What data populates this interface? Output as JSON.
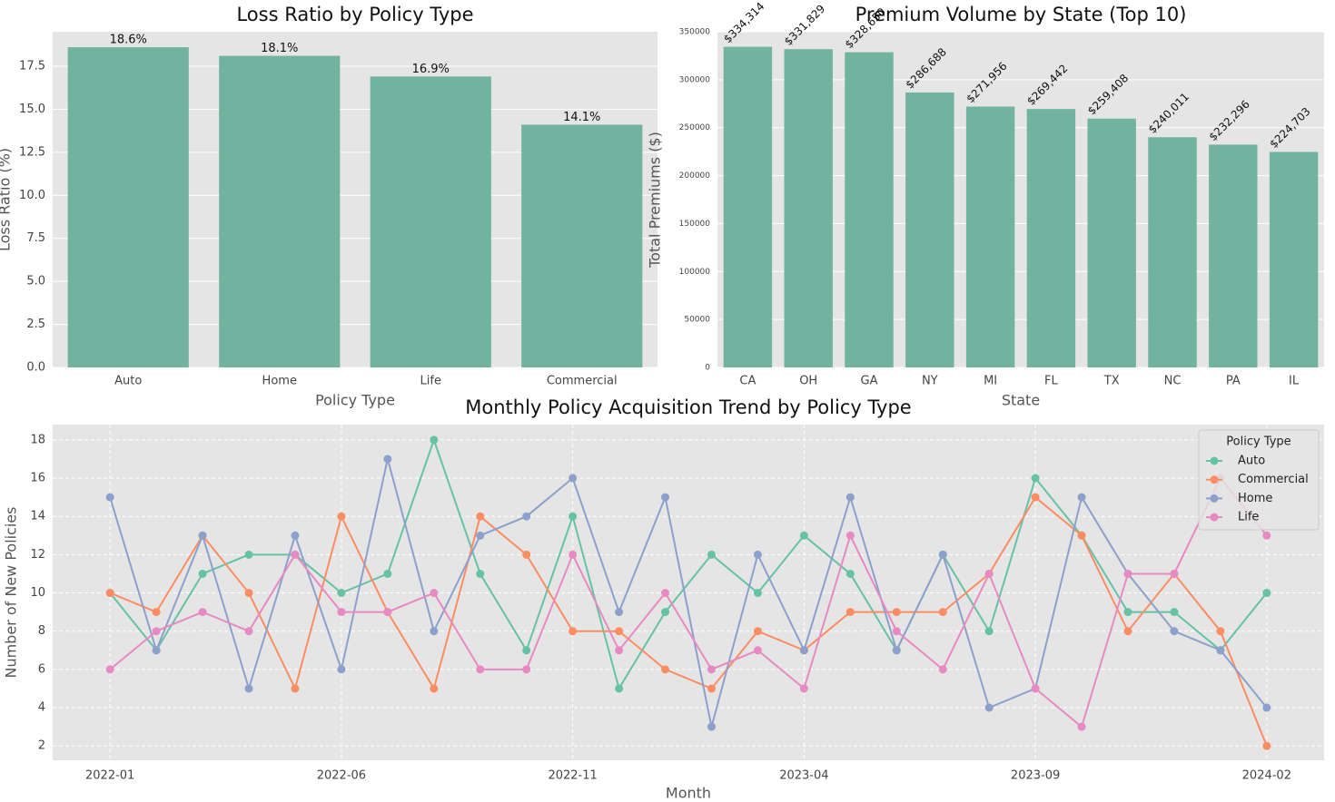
{
  "chart_data": [
    {
      "type": "bar",
      "title": "Loss Ratio by Policy Type",
      "xlabel": "Policy Type",
      "ylabel": "Loss Ratio (%)",
      "categories": [
        "Auto",
        "Home",
        "Life",
        "Commercial"
      ],
      "values": [
        18.6,
        18.1,
        16.9,
        14.1
      ],
      "value_labels": [
        "18.6%",
        "18.1%",
        "16.9%",
        "14.1%"
      ],
      "color": "#72b39f",
      "ylim": [
        0,
        19.5
      ],
      "yticks": [
        {
          "value": 0,
          "label": "0.0"
        },
        2.5,
        {
          "value": 5,
          "label": "5.0"
        },
        7.5,
        {
          "value": 10,
          "label": "10.0"
        },
        12.5,
        {
          "value": 15,
          "label": "15.0"
        },
        17.5
      ],
      "grid": true
    },
    {
      "type": "bar",
      "title": "Premium Volume by State (Top 10)",
      "xlabel": "State",
      "ylabel": "Total Premiums ($)",
      "categories": [
        "CA",
        "OH",
        "GA",
        "NY",
        "MI",
        "FL",
        "TX",
        "NC",
        "PA",
        "IL"
      ],
      "values": [
        334314,
        331829,
        328650,
        286688,
        271956,
        269442,
        259408,
        240011,
        232296,
        224703
      ],
      "value_labels": [
        "$334,314",
        "$331,829",
        "$328,650",
        "$286,688",
        "$271,956",
        "$269,442",
        "$259,408",
        "$240,011",
        "$232,296",
        "$224,703"
      ],
      "color": "#72b39f",
      "ylim": [
        0,
        350000
      ],
      "yticks": [
        0,
        50000,
        100000,
        150000,
        200000,
        250000,
        300000,
        350000
      ],
      "grid": true
    },
    {
      "type": "line",
      "title": "Monthly Policy Acquisition Trend by Policy Type",
      "xlabel": "Month",
      "ylabel": "Number of New Policies",
      "categories": [
        "2022-01",
        null,
        null,
        null,
        null,
        "2022-06",
        null,
        null,
        null,
        null,
        "2022-11",
        null,
        null,
        null,
        null,
        "2023-04",
        null,
        null,
        null,
        null,
        "2023-09",
        null,
        null,
        null,
        null,
        "2024-02"
      ],
      "series": [
        {
          "name": "Auto",
          "color": "#66c2a5",
          "values": [
            10,
            7,
            11,
            12,
            12,
            10,
            11,
            18,
            11,
            7,
            14,
            5,
            9,
            12,
            10,
            13,
            11,
            7,
            12,
            8,
            16,
            13,
            9,
            9,
            7,
            10
          ]
        },
        {
          "name": "Commercial",
          "color": "#fc8d62",
          "values": [
            10,
            9,
            13,
            10,
            5,
            14,
            9,
            5,
            14,
            12,
            8,
            8,
            6,
            5,
            8,
            7,
            9,
            9,
            9,
            11,
            15,
            13,
            8,
            11,
            8,
            2
          ]
        },
        {
          "name": "Home",
          "color": "#8da0cb",
          "values": [
            15,
            7,
            13,
            5,
            13,
            6,
            17,
            8,
            13,
            14,
            16,
            9,
            15,
            3,
            12,
            7,
            15,
            7,
            12,
            4,
            5,
            15,
            11,
            8,
            7,
            4
          ]
        },
        {
          "name": "Life",
          "color": "#e78ac3",
          "values": [
            6,
            8,
            9,
            8,
            12,
            9,
            9,
            10,
            6,
            6,
            12,
            7,
            10,
            6,
            7,
            5,
            13,
            8,
            6,
            11,
            5,
            3,
            11,
            11,
            16,
            13
          ]
        }
      ],
      "ylim": [
        1.25,
        18.8
      ],
      "yticks": [
        2,
        4,
        6,
        8,
        10,
        12,
        14,
        16,
        18
      ],
      "grid": true,
      "legend_title": "Policy Type",
      "legend": "upper right"
    }
  ]
}
